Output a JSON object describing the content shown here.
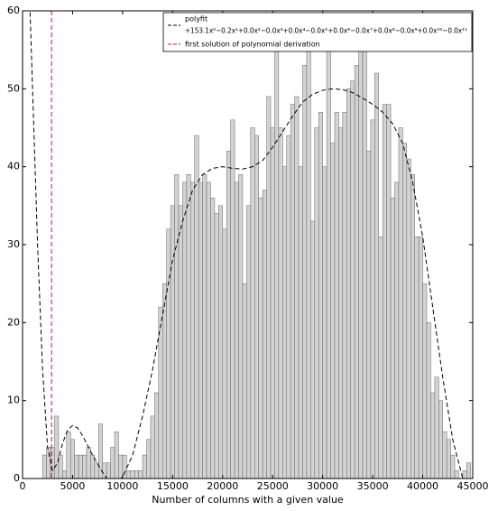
{
  "chart_data": {
    "type": "histogram",
    "xlabel": "Number of columns with a given value",
    "xlim": [
      0,
      45000
    ],
    "ylim": [
      0,
      60
    ],
    "xticks": [
      0,
      5000,
      10000,
      15000,
      20000,
      25000,
      30000,
      35000,
      40000,
      45000
    ],
    "yticks": [
      0,
      10,
      20,
      30,
      40,
      50,
      60
    ],
    "color": "#d3d3d3",
    "bins": [
      2000,
      2400,
      2800,
      3200,
      3600,
      4000,
      4400,
      4800,
      5200,
      5600,
      6000,
      6400,
      6800,
      7200,
      7600,
      8000,
      8400,
      8800,
      9200,
      9600,
      10000,
      10400,
      10800,
      11200,
      11600,
      12000,
      12400,
      12800,
      13200,
      13600,
      14000,
      14400,
      14800,
      15200,
      15600,
      16000,
      16400,
      16800,
      17200,
      17600,
      18000,
      18400,
      18800,
      19200,
      19600,
      20000,
      20400,
      20800,
      21200,
      21600,
      22000,
      22400,
      22800,
      23200,
      23600,
      24000,
      24400,
      24800,
      25200,
      25600,
      26000,
      26400,
      26800,
      27200,
      27600,
      28000,
      28400,
      28800,
      29200,
      29600,
      30000,
      30400,
      30800,
      31200,
      31600,
      32000,
      32400,
      32800,
      33200,
      33600,
      34000,
      34400,
      34800,
      35200,
      35600,
      36000,
      36400,
      36800,
      37200,
      37600,
      38000,
      38400,
      38800,
      39200,
      39600,
      40000,
      40400,
      40800,
      41200,
      41600,
      42000,
      42400,
      42800,
      43200,
      43600,
      44000,
      44400,
      44800
    ],
    "counts": [
      3,
      4,
      4,
      8,
      3,
      1,
      6,
      5,
      3,
      3,
      3,
      4,
      3,
      2,
      7,
      2,
      2,
      4,
      6,
      3,
      3,
      1,
      1,
      1,
      1,
      3,
      5,
      8,
      11,
      22,
      25,
      32,
      35,
      39,
      35,
      38,
      39,
      38,
      44,
      38,
      39,
      38,
      36,
      34,
      35,
      32,
      42,
      46,
      38,
      39,
      25,
      35,
      45,
      44,
      36,
      37,
      49,
      45,
      55,
      45,
      40,
      44,
      48,
      49,
      40,
      53,
      55,
      33,
      45,
      47,
      40,
      55,
      43,
      47,
      45,
      47,
      50,
      51,
      53,
      55,
      55,
      42,
      46,
      52,
      31,
      48,
      48,
      36,
      38,
      45,
      43,
      41,
      39,
      31,
      31,
      25,
      20,
      11,
      13,
      10,
      6,
      5,
      3,
      1,
      0,
      1,
      2
    ],
    "overlays": [
      {
        "name": "polyfit",
        "formula": "+153.1x⁰−0.2x¹+0.0x²−0.0x³+0.0x⁴−0.0x⁵+0.0x⁶−0.0x⁷+0.0x⁸−0.0x⁹+0.0x¹⁰−0.0x¹¹",
        "color": "#000000",
        "x": [
          500,
          1000,
          1500,
          2000,
          2500,
          3000,
          3500,
          4000,
          4500,
          5000,
          5500,
          6000,
          7000,
          8000,
          9000,
          10000,
          11000,
          12000,
          13000,
          14000,
          15000,
          16000,
          17000,
          18000,
          19000,
          20000,
          21000,
          22000,
          23000,
          24000,
          25000,
          26000,
          27000,
          28000,
          29000,
          30000,
          31000,
          32000,
          33000,
          34000,
          35000,
          36000,
          37000,
          38000,
          39000,
          40000,
          41000,
          42000,
          43000,
          44000,
          44500
        ],
        "y": [
          70,
          50,
          30,
          14,
          4,
          1,
          2,
          4.5,
          6.2,
          6.8,
          6.5,
          5.5,
          3,
          0.8,
          -1,
          0.2,
          3,
          8,
          14,
          21,
          28,
          33,
          37,
          39,
          39.8,
          40,
          39.8,
          39.7,
          40,
          40.8,
          42.5,
          44.5,
          46.5,
          48.3,
          49.3,
          49.8,
          50,
          49.9,
          49.5,
          48.8,
          48,
          47,
          45.5,
          43,
          38,
          31,
          22,
          13,
          5,
          0,
          -2
        ]
      }
    ],
    "vlines": [
      {
        "name": "first solution of polynomial derivation",
        "color": "#c0143c",
        "x": 2900
      }
    ]
  }
}
